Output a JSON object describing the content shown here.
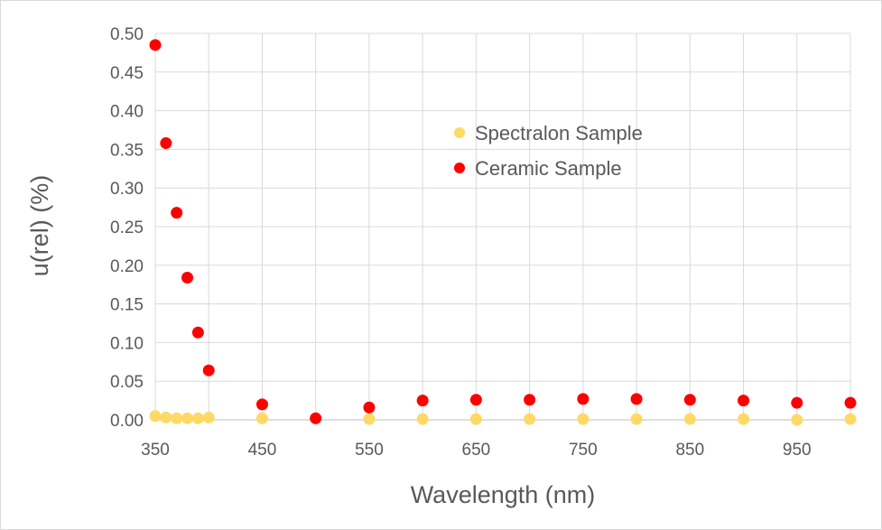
{
  "chart_data": {
    "type": "scatter",
    "title": "",
    "xlabel": "Wavelength (nm)",
    "ylabel": "u(rel) (%)",
    "xlim": [
      350,
      1000
    ],
    "ylim": [
      0,
      0.5
    ],
    "x_ticks": [
      350,
      450,
      550,
      650,
      750,
      850,
      950
    ],
    "x_gridlines": [
      350,
      400,
      450,
      500,
      550,
      600,
      650,
      700,
      750,
      800,
      850,
      900,
      950,
      1000
    ],
    "y_ticks": [
      "0.00",
      "0.05",
      "0.10",
      "0.15",
      "0.20",
      "0.25",
      "0.30",
      "0.35",
      "0.40",
      "0.45",
      "0.50"
    ],
    "grid": true,
    "legend_position": "top-center",
    "series": [
      {
        "name": "Spectralon Sample",
        "color": "#ffd966",
        "x": [
          350,
          360,
          370,
          380,
          390,
          400,
          450,
          500,
          550,
          600,
          650,
          700,
          750,
          800,
          850,
          900,
          950,
          1000
        ],
        "y": [
          0.005,
          0.003,
          0.002,
          0.002,
          0.002,
          0.003,
          0.002,
          0.002,
          0.001,
          0.001,
          0.001,
          0.001,
          0.001,
          0.001,
          0.001,
          0.001,
          0.0,
          0.001
        ]
      },
      {
        "name": "Ceramic Sample",
        "color": "#ff0000",
        "x": [
          350,
          360,
          370,
          380,
          390,
          400,
          450,
          500,
          550,
          600,
          650,
          700,
          750,
          800,
          850,
          900,
          950,
          1000
        ],
        "y": [
          0.485,
          0.358,
          0.268,
          0.184,
          0.113,
          0.064,
          0.02,
          0.002,
          0.016,
          0.025,
          0.026,
          0.026,
          0.027,
          0.027,
          0.026,
          0.025,
          0.022,
          0.022
        ]
      }
    ]
  }
}
